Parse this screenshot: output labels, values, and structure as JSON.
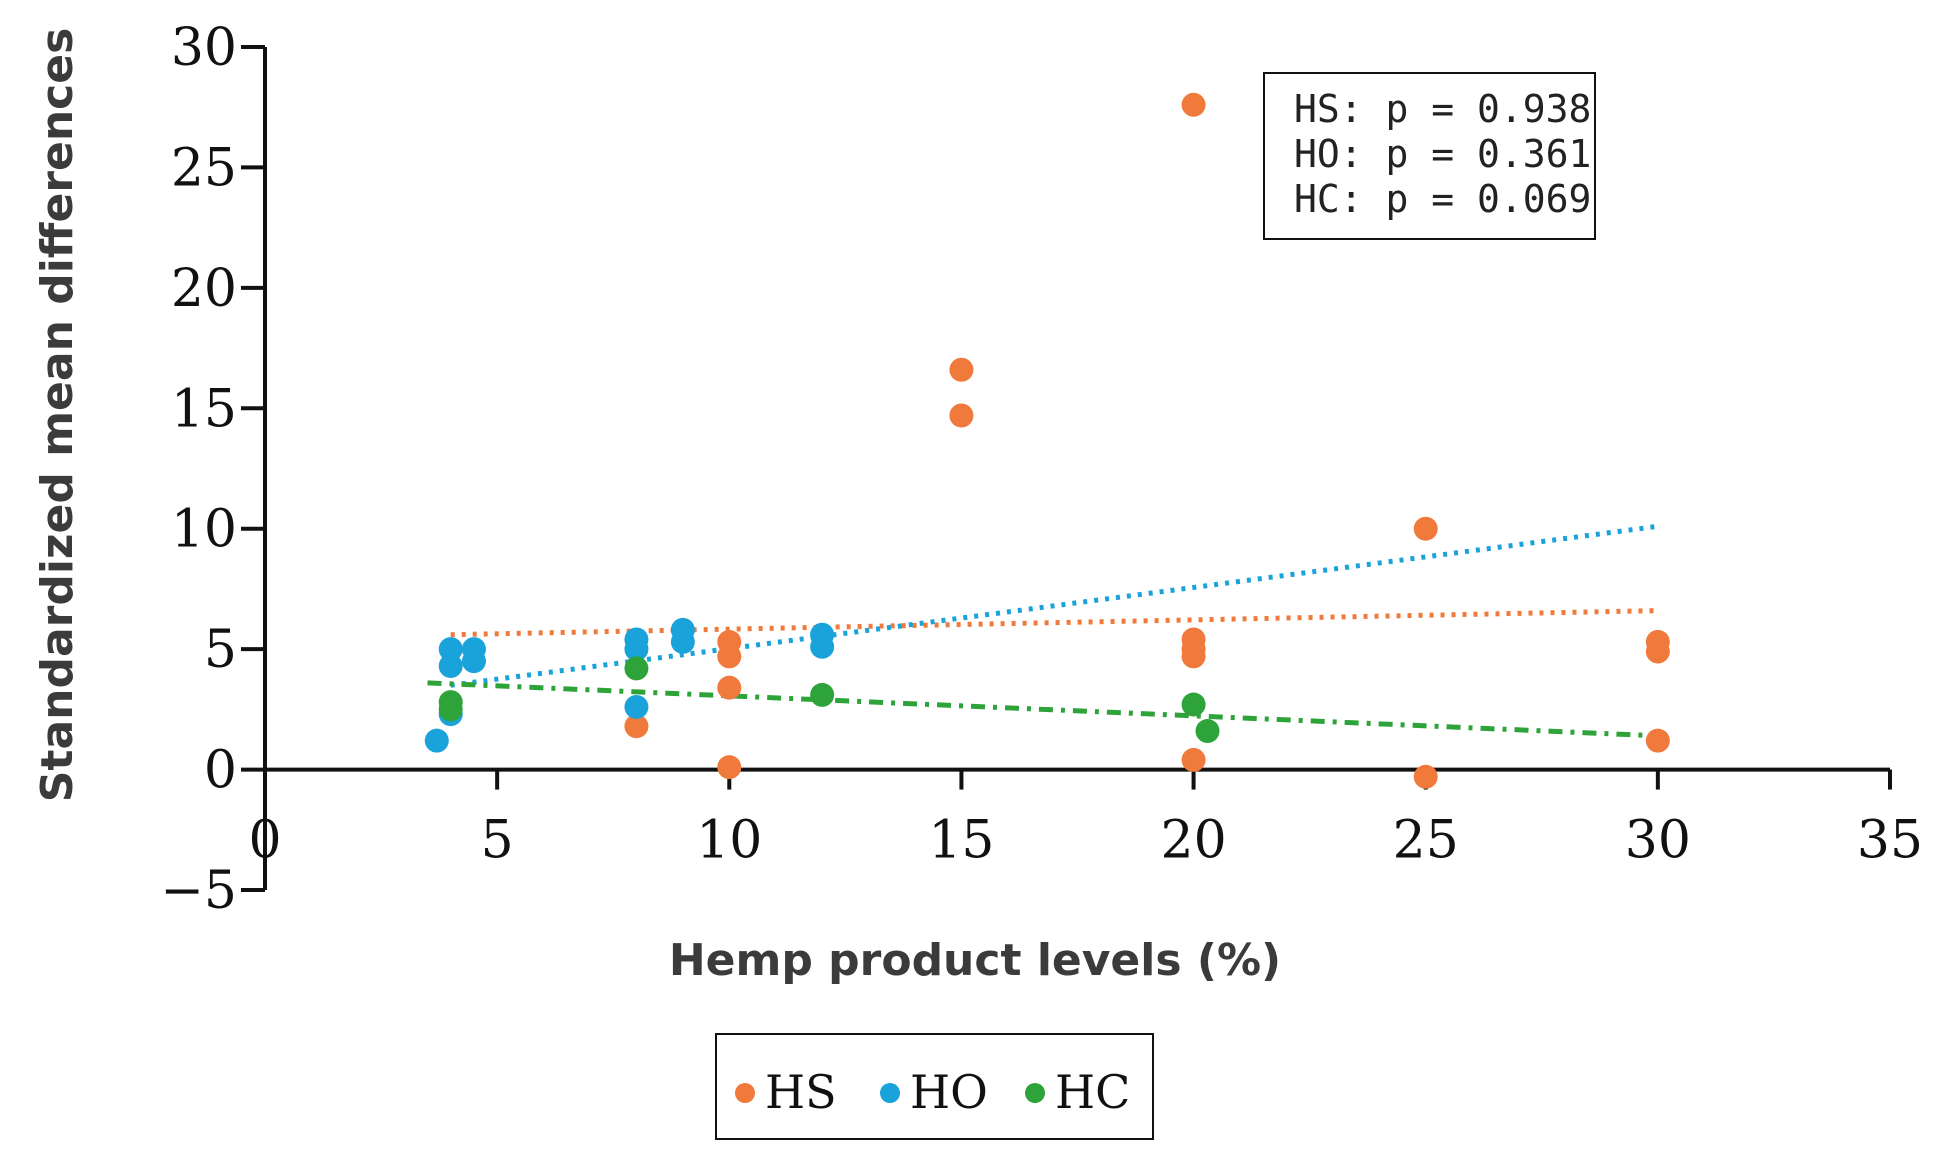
{
  "chart_data": {
    "type": "scatter",
    "xlabel": "Hemp product levels (%)",
    "ylabel": "Standardized mean differences",
    "xlim": [
      0,
      35
    ],
    "ylim": [
      -5,
      30
    ],
    "x_ticks": [
      "0",
      "5",
      "10",
      "15",
      "20",
      "25",
      "30",
      "35"
    ],
    "y_ticks": [
      "30",
      "25",
      "20",
      "15",
      "10",
      "5",
      "0",
      "−5"
    ],
    "grid": false,
    "legend_position": "bottom-center",
    "annotation_lines": [
      "HS: p = 0.938",
      "HO: p = 0.361",
      "HC: p = 0.069"
    ],
    "series": [
      {
        "name": "HS",
        "color": "#f07a3c",
        "points": [
          [
            8,
            1.8
          ],
          [
            10,
            0.1
          ],
          [
            10,
            3.4
          ],
          [
            10,
            4.7
          ],
          [
            10,
            5.3
          ],
          [
            15,
            14.7
          ],
          [
            15,
            16.6
          ],
          [
            20,
            27.6
          ],
          [
            20,
            0.4
          ],
          [
            20,
            4.7
          ],
          [
            20,
            5.0
          ],
          [
            20,
            5.4
          ],
          [
            25,
            10.0
          ],
          [
            25,
            -0.3
          ],
          [
            30,
            1.2
          ],
          [
            30,
            4.9
          ],
          [
            30,
            5.3
          ]
        ],
        "trend": {
          "style": "dotted",
          "from": [
            4,
            5.6
          ],
          "to": [
            30,
            6.6
          ]
        }
      },
      {
        "name": "HO",
        "color": "#1aa2db",
        "points": [
          [
            3.7,
            1.2
          ],
          [
            4,
            2.3
          ],
          [
            4,
            4.3
          ],
          [
            4,
            5.0
          ],
          [
            4.5,
            4.5
          ],
          [
            4.5,
            5.0
          ],
          [
            8,
            2.6
          ],
          [
            8,
            5.0
          ],
          [
            8,
            5.4
          ],
          [
            9,
            5.3
          ],
          [
            9,
            5.8
          ],
          [
            12,
            5.1
          ],
          [
            12,
            5.6
          ]
        ],
        "trend": {
          "style": "dotted",
          "from": [
            4,
            3.5
          ],
          "to": [
            30,
            10.1
          ]
        }
      },
      {
        "name": "HC",
        "color": "#2ea33a",
        "points": [
          [
            4,
            2.5
          ],
          [
            4,
            2.8
          ],
          [
            8,
            4.2
          ],
          [
            12,
            3.1
          ],
          [
            20,
            2.7
          ],
          [
            20.3,
            1.6
          ]
        ],
        "trend": {
          "style": "dash-dot",
          "from": [
            3.5,
            3.6
          ],
          "to": [
            30,
            1.4
          ]
        }
      }
    ]
  }
}
